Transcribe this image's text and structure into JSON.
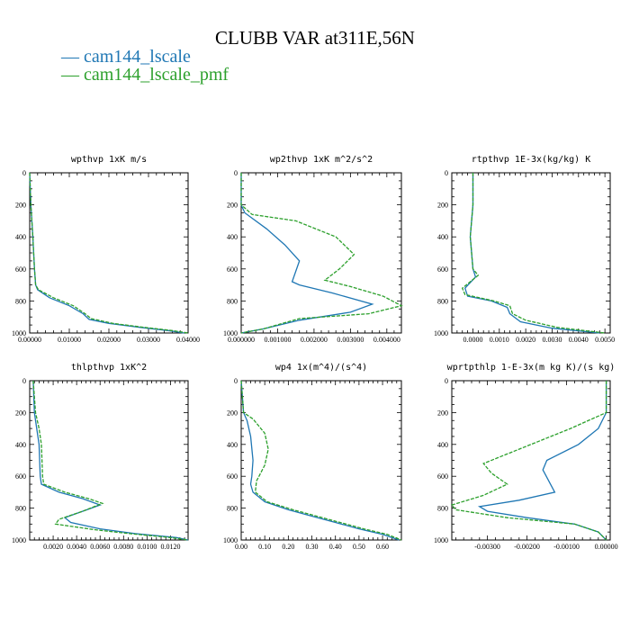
{
  "title": "CLUBB VAR at311E,56N",
  "legend": [
    {
      "label": "cam144_lscale",
      "color": "#1f77b4"
    },
    {
      "label": "cam144_lscale_pmf",
      "color": "#2ca02c"
    }
  ],
  "chart_data": [
    {
      "type": "line",
      "title": "wpthvp  1xK m/s",
      "xlim": [
        0,
        0.04
      ],
      "ylim": [
        1000,
        0
      ],
      "xticks": [
        0,
        0.01,
        0.02,
        0.03,
        0.04
      ],
      "xticklabels": [
        "0.00000",
        "0.01000",
        "0.02000",
        "0.03000",
        "0.04000"
      ],
      "yticks": [
        0,
        200,
        400,
        600,
        800,
        1000
      ],
      "yticklabels": [
        "0",
        "200",
        "400",
        "600",
        "800",
        "1000"
      ],
      "series": [
        {
          "name": "cam144_lscale",
          "color": "#1f77b4",
          "dashed": false,
          "points": [
            [
              0,
              0
            ],
            [
              0.0003,
              200
            ],
            [
              0.0008,
              400
            ],
            [
              0.0012,
              600
            ],
            [
              0.0015,
              700
            ],
            [
              0.002,
              730
            ],
            [
              0.005,
              780
            ],
            [
              0.01,
              830
            ],
            [
              0.0135,
              880
            ],
            [
              0.015,
              915
            ],
            [
              0.02,
              940
            ],
            [
              0.028,
              965
            ],
            [
              0.035,
              985
            ],
            [
              0.039,
              1000
            ]
          ]
        },
        {
          "name": "cam144_lscale_pmf",
          "color": "#2ca02c",
          "dashed": true,
          "points": [
            [
              0,
              0
            ],
            [
              0.0003,
              200
            ],
            [
              0.0008,
              400
            ],
            [
              0.0012,
              600
            ],
            [
              0.0015,
              700
            ],
            [
              0.0022,
              730
            ],
            [
              0.006,
              780
            ],
            [
              0.011,
              830
            ],
            [
              0.014,
              880
            ],
            [
              0.0155,
              910
            ],
            [
              0.021,
              940
            ],
            [
              0.029,
              965
            ],
            [
              0.036,
              985
            ],
            [
              0.04,
              1000
            ]
          ]
        }
      ]
    },
    {
      "type": "line",
      "title": "wp2thvp  1xK m^2/s^2",
      "xlim": [
        0,
        0.0044
      ],
      "ylim": [
        1000,
        0
      ],
      "xticks": [
        0,
        0.001,
        0.002,
        0.003,
        0.004
      ],
      "xticklabels": [
        "0.000000",
        "0.001000",
        "0.002000",
        "0.003000",
        "0.004000"
      ],
      "yticks": [
        0,
        200,
        400,
        600,
        800,
        1000
      ],
      "yticklabels": [
        "0",
        "200",
        "400",
        "600",
        "800",
        "1000"
      ],
      "series": [
        {
          "name": "cam144_lscale",
          "color": "#1f77b4",
          "dashed": false,
          "points": [
            [
              0,
              0
            ],
            [
              0,
              200
            ],
            [
              0.0001,
              250
            ],
            [
              0.0007,
              350
            ],
            [
              0.0012,
              450
            ],
            [
              0.0016,
              550
            ],
            [
              0.0014,
              680
            ],
            [
              0.0016,
              700
            ],
            [
              0.0025,
              750
            ],
            [
              0.0036,
              820
            ],
            [
              0.003,
              870
            ],
            [
              0.0016,
              920
            ],
            [
              0.0006,
              975
            ],
            [
              0,
              1000
            ]
          ]
        },
        {
          "name": "cam144_lscale_pmf",
          "color": "#2ca02c",
          "dashed": true,
          "points": [
            [
              0,
              0
            ],
            [
              0,
              200
            ],
            [
              0.0003,
              260
            ],
            [
              0.0015,
              300
            ],
            [
              0.0026,
              400
            ],
            [
              0.0031,
              510
            ],
            [
              0.0027,
              600
            ],
            [
              0.0023,
              670
            ],
            [
              0.003,
              710
            ],
            [
              0.0039,
              770
            ],
            [
              0.0044,
              830
            ],
            [
              0.0035,
              880
            ],
            [
              0.0016,
              910
            ],
            [
              0.0006,
              975
            ],
            [
              0,
              1000
            ]
          ]
        }
      ]
    },
    {
      "type": "line",
      "title": "rtpthvp  1E-3x(kg/kg) K",
      "xlim": [
        -0.0008,
        0.0052
      ],
      "ylim": [
        1000,
        0
      ],
      "xticks": [
        0,
        0.001,
        0.002,
        0.003,
        0.004,
        0.005
      ],
      "xticklabels": [
        "0.0000",
        "0.0010",
        "0.0020",
        "0.0030",
        "0.0040",
        "0.0050"
      ],
      "yticks": [
        0,
        200,
        400,
        600,
        800,
        1000
      ],
      "yticklabels": [
        "0",
        "200",
        "400",
        "600",
        "800",
        "1000"
      ],
      "series": [
        {
          "name": "cam144_lscale",
          "color": "#1f77b4",
          "dashed": false,
          "points": [
            [
              0,
              0
            ],
            [
              0,
              200
            ],
            [
              -0.0001,
              400
            ],
            [
              0,
              600
            ],
            [
              0.0001,
              650
            ],
            [
              -0.0003,
              720
            ],
            [
              -0.0002,
              770
            ],
            [
              0.0007,
              800
            ],
            [
              0.0013,
              840
            ],
            [
              0.0014,
              880
            ],
            [
              0.0018,
              930
            ],
            [
              0.003,
              970
            ],
            [
              0.0048,
              1000
            ]
          ]
        },
        {
          "name": "cam144_lscale_pmf",
          "color": "#2ca02c",
          "dashed": true,
          "points": [
            [
              0,
              0
            ],
            [
              0,
              200
            ],
            [
              -0.0001,
              400
            ],
            [
              0,
              600
            ],
            [
              0.0002,
              640
            ],
            [
              -0.0004,
              720
            ],
            [
              -0.0003,
              760
            ],
            [
              0.0008,
              800
            ],
            [
              0.0014,
              830
            ],
            [
              0.0015,
              880
            ],
            [
              0.002,
              920
            ],
            [
              0.0032,
              965
            ],
            [
              0.005,
              1000
            ]
          ]
        }
      ]
    },
    {
      "type": "line",
      "title": "thlpthvp  1xK^2",
      "xlim": [
        0,
        0.0135
      ],
      "ylim": [
        1000,
        0
      ],
      "xticks": [
        0.002,
        0.004,
        0.006,
        0.008,
        0.01,
        0.012
      ],
      "xticklabels": [
        "0.0020",
        "0.0040",
        "0.0060",
        "0.0080",
        "0.0100",
        "0.0120"
      ],
      "yticks": [
        0,
        200,
        400,
        600,
        800,
        1000
      ],
      "yticklabels": [
        "0",
        "200",
        "400",
        "600",
        "800",
        "1000"
      ],
      "series": [
        {
          "name": "cam144_lscale",
          "color": "#1f77b4",
          "dashed": false,
          "points": [
            [
              0.0003,
              0
            ],
            [
              0.0004,
              200
            ],
            [
              0.0006,
              300
            ],
            [
              0.0008,
              400
            ],
            [
              0.0009,
              600
            ],
            [
              0.001,
              650
            ],
            [
              0.0025,
              700
            ],
            [
              0.0045,
              740
            ],
            [
              0.006,
              780
            ],
            [
              0.0045,
              820
            ],
            [
              0.003,
              860
            ],
            [
              0.0035,
              890
            ],
            [
              0.006,
              930
            ],
            [
              0.009,
              960
            ],
            [
              0.0125,
              985
            ],
            [
              0.0135,
              1000
            ]
          ]
        },
        {
          "name": "cam144_lscale_pmf",
          "color": "#2ca02c",
          "dashed": true,
          "points": [
            [
              0.0003,
              0
            ],
            [
              0.0005,
              200
            ],
            [
              0.0008,
              300
            ],
            [
              0.001,
              400
            ],
            [
              0.0011,
              600
            ],
            [
              0.0012,
              650
            ],
            [
              0.003,
              700
            ],
            [
              0.005,
              740
            ],
            [
              0.0062,
              770
            ],
            [
              0.0045,
              820
            ],
            [
              0.0025,
              870
            ],
            [
              0.0022,
              900
            ],
            [
              0.0055,
              935
            ],
            [
              0.0085,
              960
            ],
            [
              0.012,
              985
            ],
            [
              0.0135,
              1000
            ]
          ]
        }
      ]
    },
    {
      "type": "line",
      "title": "wp4  1x(m^4)/(s^4)",
      "xlim": [
        0,
        0.68
      ],
      "ylim": [
        1000,
        0
      ],
      "xticks": [
        0,
        0.1,
        0.2,
        0.3,
        0.4,
        0.5,
        0.6
      ],
      "xticklabels": [
        "0.00",
        "0.10",
        "0.20",
        "0.30",
        "0.40",
        "0.50",
        "0.60"
      ],
      "yticks": [
        0,
        200,
        400,
        600,
        800,
        1000
      ],
      "yticklabels": [
        "0",
        "200",
        "400",
        "600",
        "800",
        "1000"
      ],
      "series": [
        {
          "name": "cam144_lscale",
          "color": "#1f77b4",
          "dashed": false,
          "points": [
            [
              0,
              0
            ],
            [
              0.01,
              200
            ],
            [
              0.025,
              250
            ],
            [
              0.04,
              350
            ],
            [
              0.05,
              500
            ],
            [
              0.045,
              600
            ],
            [
              0.04,
              650
            ],
            [
              0.05,
              700
            ],
            [
              0.1,
              760
            ],
            [
              0.2,
              810
            ],
            [
              0.3,
              850
            ],
            [
              0.4,
              890
            ],
            [
              0.5,
              930
            ],
            [
              0.6,
              965
            ],
            [
              0.67,
              1000
            ]
          ]
        },
        {
          "name": "cam144_lscale_pmf",
          "color": "#2ca02c",
          "dashed": true,
          "points": [
            [
              0,
              0
            ],
            [
              0.01,
              200
            ],
            [
              0.05,
              240
            ],
            [
              0.1,
              330
            ],
            [
              0.115,
              430
            ],
            [
              0.1,
              530
            ],
            [
              0.065,
              630
            ],
            [
              0.06,
              700
            ],
            [
              0.11,
              760
            ],
            [
              0.22,
              810
            ],
            [
              0.32,
              850
            ],
            [
              0.42,
              890
            ],
            [
              0.52,
              930
            ],
            [
              0.62,
              965
            ],
            [
              0.68,
              1000
            ]
          ]
        }
      ]
    },
    {
      "type": "line",
      "title": "wprtpthlp  1-E-3x(m kg K)/(s kg)",
      "xlim": [
        -0.0039,
        0.0001
      ],
      "ylim": [
        1000,
        0
      ],
      "xticks": [
        -0.003,
        -0.002,
        -0.001,
        0
      ],
      "xticklabels": [
        "-0.00300",
        "-0.00200",
        "-0.00100",
        "0.00000"
      ],
      "yticks": [
        0,
        200,
        400,
        600,
        800,
        1000
      ],
      "yticklabels": [
        "0",
        "200",
        "400",
        "600",
        "800",
        "1000"
      ],
      "series": [
        {
          "name": "cam144_lscale",
          "color": "#1f77b4",
          "dashed": false,
          "points": [
            [
              0,
              0
            ],
            [
              0,
              200
            ],
            [
              -0.0002,
              300
            ],
            [
              -0.0007,
              400
            ],
            [
              -0.0015,
              500
            ],
            [
              -0.0016,
              560
            ],
            [
              -0.0013,
              700
            ],
            [
              -0.0022,
              750
            ],
            [
              -0.0032,
              790
            ],
            [
              -0.003,
              820
            ],
            [
              -0.002,
              860
            ],
            [
              -0.0008,
              900
            ],
            [
              -0.0002,
              950
            ],
            [
              0,
              1000
            ]
          ]
        },
        {
          "name": "cam144_lscale_pmf",
          "color": "#2ca02c",
          "dashed": true,
          "points": [
            [
              0,
              0
            ],
            [
              0,
              200
            ],
            [
              -0.0009,
              300
            ],
            [
              -0.0019,
              400
            ],
            [
              -0.0031,
              520
            ],
            [
              -0.0029,
              580
            ],
            [
              -0.0025,
              650
            ],
            [
              -0.0031,
              720
            ],
            [
              -0.0039,
              780
            ],
            [
              -0.0038,
              810
            ],
            [
              -0.0025,
              860
            ],
            [
              -0.0008,
              900
            ],
            [
              -0.0002,
              950
            ],
            [
              0,
              1000
            ]
          ]
        }
      ]
    }
  ]
}
